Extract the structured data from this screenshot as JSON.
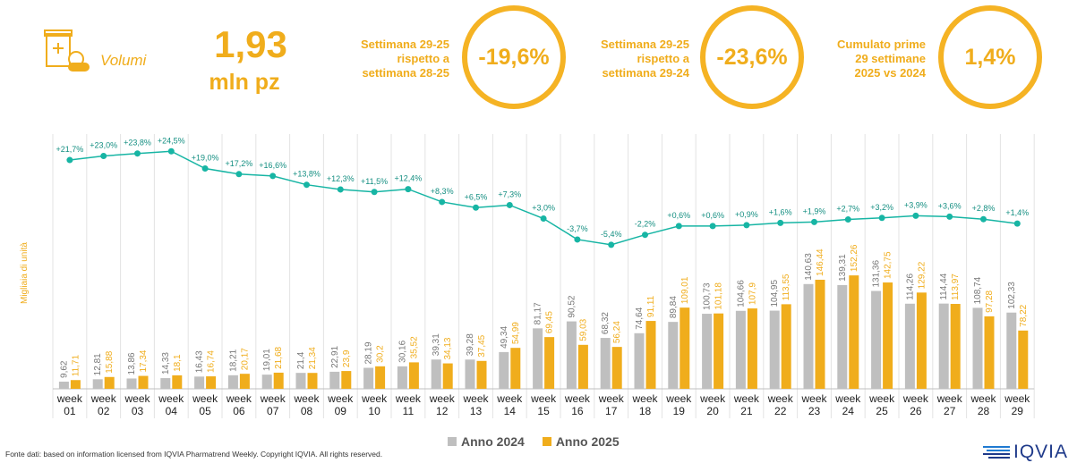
{
  "header": {
    "volumi_label": "Volumi",
    "volume_value": "1,93",
    "volume_unit": "mln pz",
    "kpis": [
      {
        "label_lines": [
          "Settimana 29-25",
          "rispetto a",
          "settimana 28-25"
        ],
        "value": "-19,6%"
      },
      {
        "label_lines": [
          "Settimana 29-25",
          "rispetto a",
          "settimana 29-24"
        ],
        "value": "-23,6%"
      },
      {
        "label_lines": [
          "Cumulato prime",
          "29 settimane",
          "2025 vs 2024"
        ],
        "value": "1,4%"
      }
    ]
  },
  "colors": {
    "accent": "#f5b324",
    "bar_2024": "#bfbfbf",
    "bar_2025": "#f0ad1c",
    "growth_line": "#17b5a4"
  },
  "icons": [
    "pill-box-icon",
    "iqvia-logo"
  ],
  "chart_data": {
    "type": "bar",
    "ylabel": "Migliaia di unità",
    "categories": [
      [
        "week",
        "01"
      ],
      [
        "week",
        "02"
      ],
      [
        "week",
        "03"
      ],
      [
        "week",
        "04"
      ],
      [
        "week",
        "05"
      ],
      [
        "week",
        "06"
      ],
      [
        "week",
        "07"
      ],
      [
        "week",
        "08"
      ],
      [
        "week",
        "09"
      ],
      [
        "week",
        "10"
      ],
      [
        "week",
        "11"
      ],
      [
        "week",
        "12"
      ],
      [
        "week",
        "13"
      ],
      [
        "week",
        "14"
      ],
      [
        "week",
        "15"
      ],
      [
        "week",
        "16"
      ],
      [
        "week",
        "17"
      ],
      [
        "week",
        "18"
      ],
      [
        "week",
        "19"
      ],
      [
        "week",
        "20"
      ],
      [
        "week",
        "21"
      ],
      [
        "week",
        "22"
      ],
      [
        "week",
        "23"
      ],
      [
        "week",
        "24"
      ],
      [
        "week",
        "25"
      ],
      [
        "week",
        "26"
      ],
      [
        "week",
        "27"
      ],
      [
        "week",
        "28"
      ],
      [
        "week",
        "29"
      ]
    ],
    "series": [
      {
        "name": "Anno 2024",
        "values": [
          9.62,
          12.81,
          13.86,
          14.33,
          16.43,
          18.21,
          19.01,
          21.4,
          22.91,
          28.19,
          30.16,
          39.31,
          39.28,
          49.34,
          81.17,
          90.52,
          68.32,
          74.64,
          89.84,
          100.73,
          104.66,
          104.95,
          140.63,
          139.31,
          131.36,
          114.26,
          114.44,
          108.74,
          102.33
        ],
        "labels": [
          "9,62",
          "12,81",
          "13,86",
          "14,33",
          "16,43",
          "18,21",
          "19,01",
          "21,4",
          "22,91",
          "28,19",
          "30,16",
          "39,31",
          "39,28",
          "49,34",
          "81,17",
          "90,52",
          "68,32",
          "74,64",
          "89,84",
          "100,73",
          "104,66",
          "104,95",
          "140,63",
          "139,31",
          "131,36",
          "114,26",
          "114,44",
          "108,74",
          "102,33"
        ]
      },
      {
        "name": "Anno 2025",
        "values": [
          11.71,
          15.88,
          17.34,
          18.1,
          16.74,
          20.17,
          21.68,
          21.34,
          23.9,
          30.2,
          35.52,
          34.13,
          37.45,
          54.99,
          69.45,
          59.03,
          56.24,
          91.11,
          109.01,
          101.18,
          107.9,
          113.55,
          146.44,
          152.26,
          142.75,
          129.22,
          113.97,
          97.28,
          78.22
        ],
        "labels": [
          "11,71",
          "15,88",
          "17,34",
          "18,1",
          "16,74",
          "20,17",
          "21,68",
          "21,34",
          "23,9",
          "30,2",
          "35,52",
          "34,13",
          "37,45",
          "54,99",
          "69,45",
          "59,03",
          "56,24",
          "91,11",
          "109,01",
          "101,18",
          "107,9",
          "113,55",
          "146,44",
          "152,26",
          "142,75",
          "129,22",
          "113,97",
          "97,28",
          "78,22"
        ]
      }
    ],
    "growth": {
      "values": [
        21.7,
        23.0,
        23.8,
        24.5,
        19.0,
        17.2,
        16.6,
        13.8,
        12.3,
        11.5,
        12.4,
        8.3,
        6.5,
        7.3,
        3.0,
        -3.7,
        -5.4,
        -2.2,
        0.6,
        0.6,
        0.9,
        1.6,
        1.9,
        2.7,
        3.2,
        3.9,
        3.6,
        2.8,
        1.4
      ],
      "labels": [
        "+21,7%",
        "+23,0%",
        "+23,8%",
        "+24,5%",
        "+19,0%",
        "+17,2%",
        "+16,6%",
        "+13,8%",
        "+12,3%",
        "+11,5%",
        "+12,4%",
        "+8,3%",
        "+6,5%",
        "+7,3%",
        "+3,0%",
        "-3,7%",
        "-5,4%",
        "-2,2%",
        "+0,6%",
        "+0,6%",
        "+0,9%",
        "+1,6%",
        "+1,9%",
        "+2,7%",
        "+3,2%",
        "+3,9%",
        "+3,6%",
        "+2,8%",
        "+1,4%"
      ]
    },
    "ylim": [
      0,
      300
    ],
    "growth_ylim": [
      -30,
      30
    ],
    "legend_position": "bottom-center",
    "grid": false
  },
  "footer": {
    "source": "Fonte dati: based on information licensed from IQVIA Pharmatrend Weekly. Copyright IQVIA. All rights reserved.",
    "logo_text": "IQVIA"
  }
}
